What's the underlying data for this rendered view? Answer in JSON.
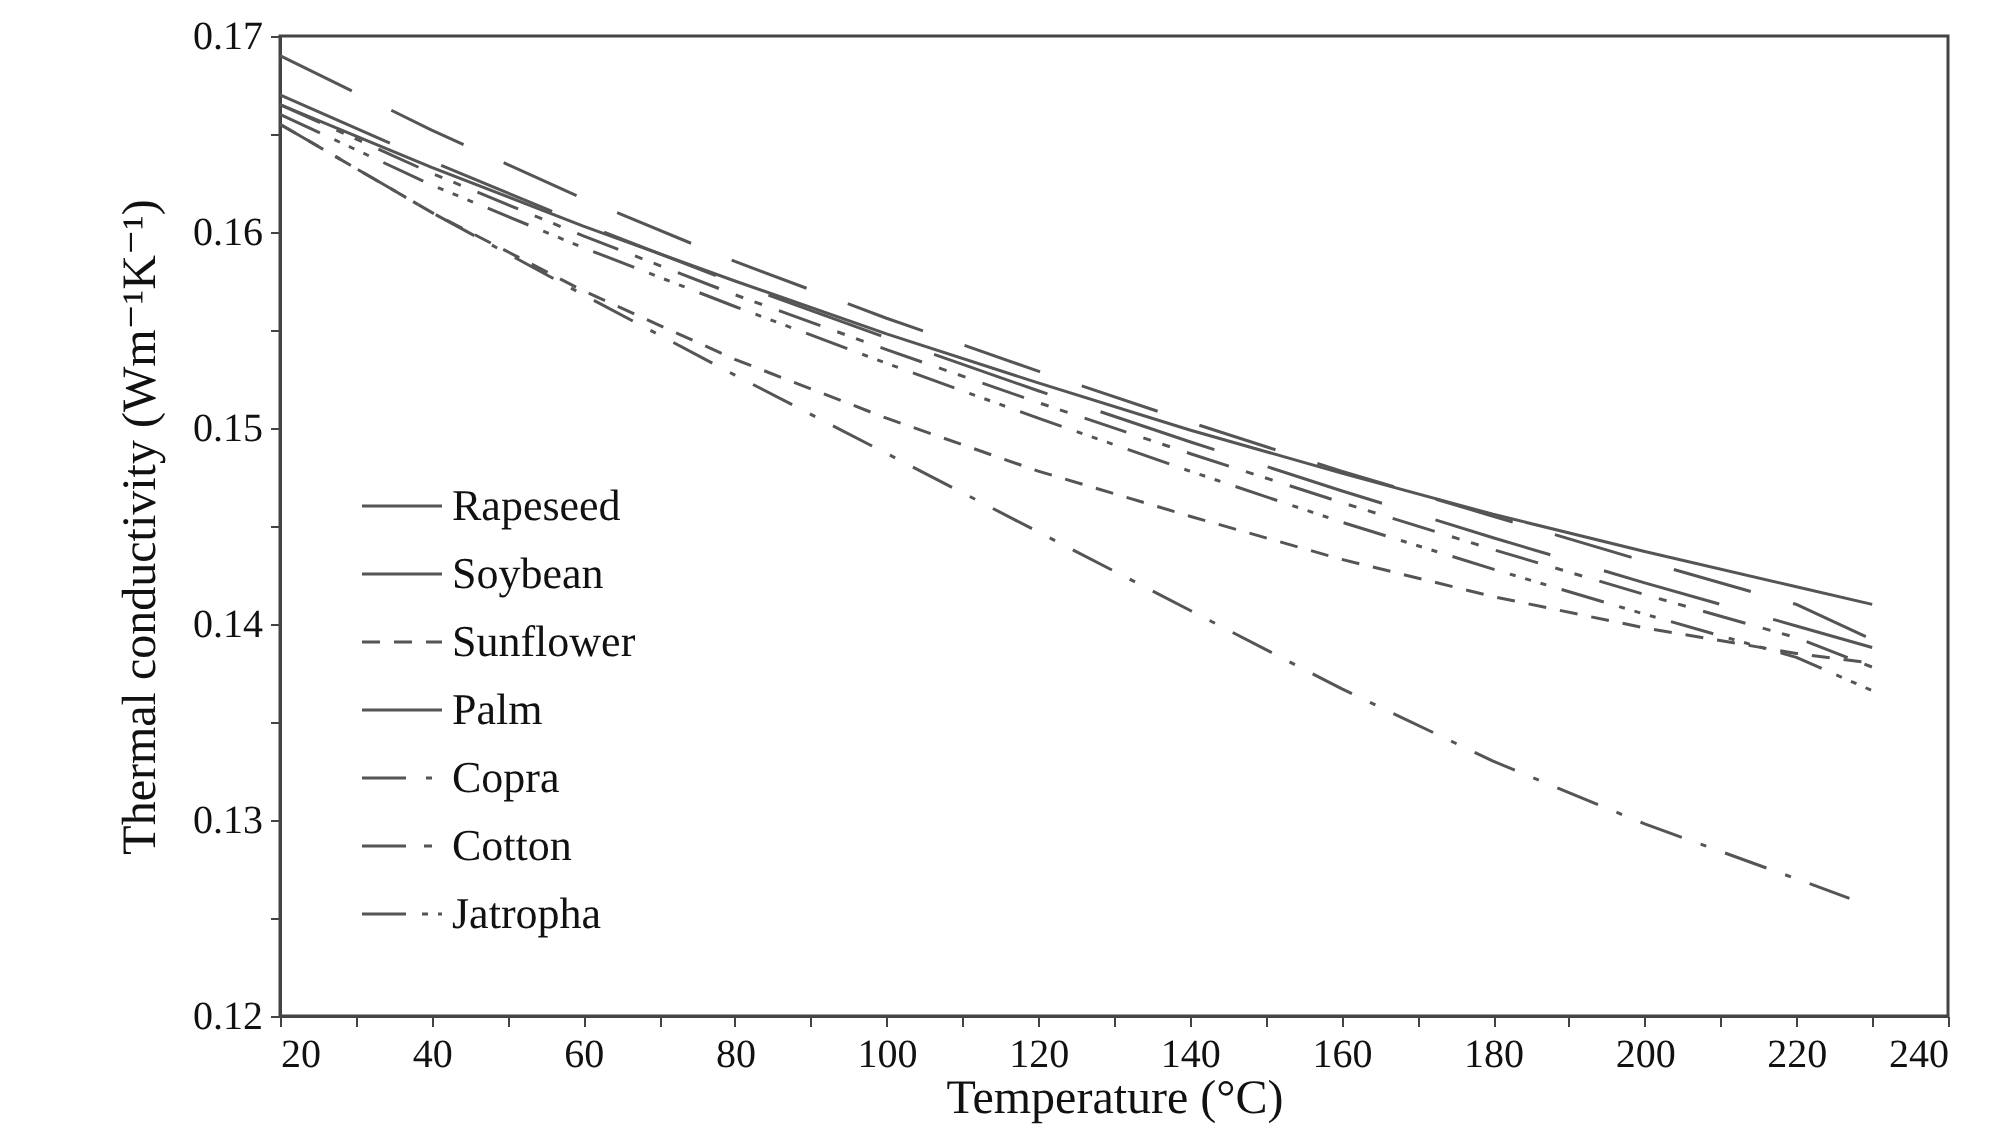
{
  "chart_data": {
    "type": "line",
    "xlabel": "Temperature (°C)",
    "ylabel": "Thermal conductivity (Wm⁻¹K⁻¹)",
    "x": [
      20,
      40,
      60,
      80,
      100,
      120,
      140,
      160,
      180,
      200,
      220,
      230
    ],
    "xlim": [
      20,
      240
    ],
    "xticks": [
      20,
      {
        "value": 30,
        "label": null
      },
      40,
      {
        "value": 50,
        "label": null
      },
      60,
      {
        "value": 70,
        "label": null
      },
      80,
      {
        "value": 90,
        "label": null
      },
      100,
      {
        "value": 110,
        "label": null
      },
      120,
      {
        "value": 130,
        "label": null
      },
      140,
      {
        "value": 150,
        "label": null
      },
      160,
      {
        "value": 170,
        "label": null
      },
      180,
      {
        "value": 190,
        "label": null
      },
      200,
      {
        "value": 210,
        "label": null
      },
      220,
      {
        "value": 230,
        "label": null
      },
      240
    ],
    "ylim": [
      0.12,
      0.17
    ],
    "yticks": [
      0.12,
      {
        "value": 0.125,
        "label": null
      },
      0.13,
      {
        "value": 0.135,
        "label": null
      },
      0.14,
      {
        "value": 0.145,
        "label": null
      },
      0.15,
      {
        "value": 0.155,
        "label": null
      },
      0.16,
      {
        "value": 0.165,
        "label": null
      },
      0.17
    ],
    "grid": false,
    "legend": "bottom left",
    "marker": "none",
    "series": [
      {
        "name": "Rapeseed",
        "color": "#555555",
        "line_style": "solid",
        "values": [
          0.1665,
          0.1633,
          0.1603,
          0.1575,
          0.1548,
          0.1523,
          0.1499,
          0.1477,
          0.1456,
          0.1437,
          0.1419,
          0.141
        ]
      },
      {
        "name": "Soybean",
        "color": "#555555",
        "line_style": "dashed",
        "values": [
          0.169,
          0.1652,
          0.1617,
          0.1585,
          0.1556,
          0.1529,
          0.1503,
          0.1478,
          0.1455,
          0.1432,
          0.141,
          0.1392
        ]
      },
      {
        "name": "Sunflower",
        "color": "#555555",
        "line_style": "dashed",
        "values": [
          0.1655,
          0.161,
          0.157,
          0.1535,
          0.1505,
          0.1478,
          0.1455,
          0.1433,
          0.1414,
          0.1398,
          0.1385,
          0.138
        ]
      },
      {
        "name": "Palm",
        "color": "#555555",
        "line_style": "dashed",
        "values": [
          0.167,
          0.1636,
          0.1604,
          0.1574,
          0.1546,
          0.1519,
          0.1493,
          0.1468,
          0.1444,
          0.1421,
          0.1399,
          0.1388
        ]
      },
      {
        "name": "Copra",
        "color": "#555555",
        "line_style": "dashed",
        "x": [
          20,
          40,
          60,
          80,
          100,
          120,
          140,
          160,
          180,
          200,
          220,
          227
        ],
        "values": [
          0.1655,
          0.161,
          0.1568,
          0.1527,
          0.1487,
          0.1447,
          0.1407,
          0.1367,
          0.133,
          0.1298,
          0.127,
          0.126
        ]
      },
      {
        "name": "Cotton",
        "color": "#555555",
        "line_style": "dashed",
        "values": [
          0.1665,
          0.163,
          0.1598,
          0.1568,
          0.154,
          0.1513,
          0.1487,
          0.1462,
          0.1438,
          0.1415,
          0.1393,
          0.1378
        ]
      },
      {
        "name": "Jatropha",
        "color": "#555555",
        "line_style": "dashed",
        "values": [
          0.166,
          0.1624,
          0.1592,
          0.1562,
          0.1533,
          0.1505,
          0.1478,
          0.1452,
          0.1428,
          0.1405,
          0.1383,
          0.1366
        ]
      }
    ]
  }
}
